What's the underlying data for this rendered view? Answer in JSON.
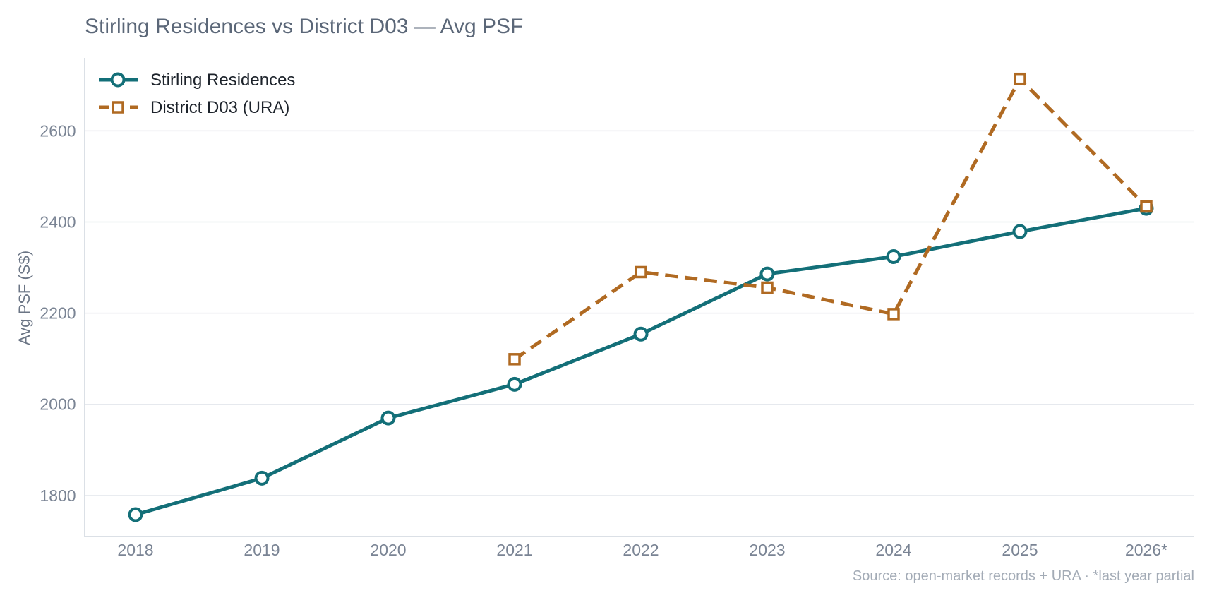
{
  "chart_data": {
    "type": "line",
    "title": "Stirling Residences vs District D03 — Avg PSF",
    "ylabel": "Avg PSF (S$)",
    "xlabel": "",
    "categories": [
      "2018",
      "2019",
      "2020",
      "2021",
      "2022",
      "2023",
      "2024",
      "2025",
      "2026*"
    ],
    "ylim": [
      1710,
      2760
    ],
    "yticks": [
      1800,
      2000,
      2200,
      2400,
      2600
    ],
    "grid": "horizontal",
    "legend_position": "top-left",
    "series": [
      {
        "name": "Stirling Residences",
        "color": "#136f78",
        "line_style": "solid",
        "marker": "circle",
        "values": [
          1758,
          1838,
          1970,
          2044,
          2154,
          2286,
          2324,
          2379,
          2430
        ]
      },
      {
        "name": "District D03 (URA)",
        "color": "#b06a22",
        "line_style": "dashed",
        "marker": "square",
        "values": [
          null,
          null,
          null,
          2099,
          2290,
          2256,
          2198,
          2714,
          2434
        ]
      }
    ],
    "annotation": "Source: open-market records + URA · *last year partial"
  }
}
